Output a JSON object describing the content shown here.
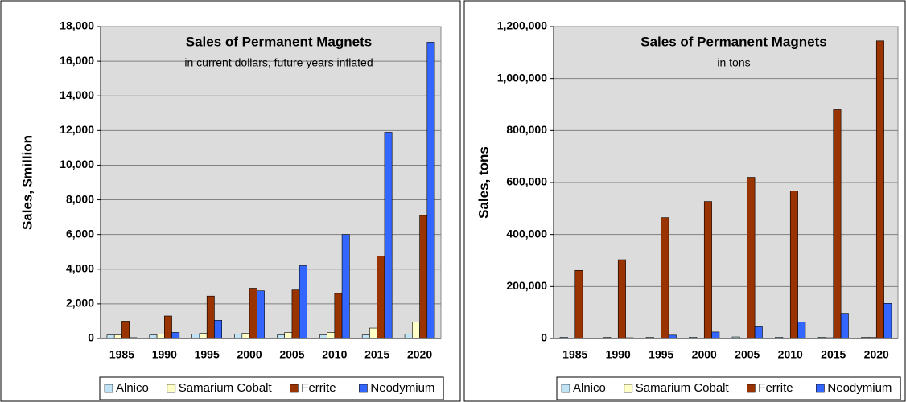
{
  "chart_data": [
    {
      "type": "bar",
      "title": "Sales of Permanent Magnets",
      "subtitle": "in current dollars, future years inflated",
      "y_label": "Sales, $million",
      "categories": [
        "1985",
        "1990",
        "1995",
        "2000",
        "2005",
        "2010",
        "2015",
        "2020"
      ],
      "series": [
        {
          "name": "Alnico",
          "color": "#bfe3f5",
          "values": [
            200,
            200,
            250,
            250,
            200,
            200,
            200,
            250
          ]
        },
        {
          "name": "Samarium Cobalt",
          "color": "#ffffc8",
          "values": [
            200,
            250,
            300,
            300,
            350,
            350,
            600,
            950
          ]
        },
        {
          "name": "Ferrite",
          "color": "#993300",
          "values": [
            1000,
            1300,
            2450,
            2900,
            2800,
            2600,
            4750,
            7100
          ]
        },
        {
          "name": "Neodymium",
          "color": "#3366ff",
          "values": [
            50,
            350,
            1050,
            2750,
            4200,
            6000,
            11900,
            17100
          ]
        }
      ],
      "ylim": [
        0,
        18000
      ],
      "yticks": [
        0,
        {
          "value": 2000,
          "label": "2,000"
        },
        {
          "value": 4000,
          "label": "4,000"
        },
        {
          "value": 6000,
          "label": "6,000"
        },
        {
          "value": 8000,
          "label": "8,000"
        },
        {
          "value": 10000,
          "label": "10,000"
        },
        {
          "value": 12000,
          "label": "12,000"
        },
        {
          "value": 14000,
          "label": "14,000"
        },
        {
          "value": 16000,
          "label": "16,000"
        },
        {
          "value": 18000,
          "label": "18,000"
        }
      ],
      "grid": true,
      "legend": "bottom"
    },
    {
      "type": "bar",
      "title": "Sales of Permanent Magnets",
      "subtitle": "in tons",
      "y_label": "Sales, tons",
      "categories": [
        "1985",
        "1990",
        "1995",
        "2000",
        "2005",
        "2010",
        "2015",
        "2020"
      ],
      "series": [
        {
          "name": "Alnico",
          "color": "#bfe3f5",
          "values": [
            5000,
            5000,
            5000,
            5000,
            6000,
            5000,
            5000,
            5000
          ]
        },
        {
          "name": "Samarium Cobalt",
          "color": "#ffffc8",
          "values": [
            1000,
            1000,
            1500,
            1500,
            2000,
            2000,
            3000,
            4000
          ]
        },
        {
          "name": "Ferrite",
          "color": "#993300",
          "values": [
            262000,
            303000,
            465000,
            527000,
            620000,
            567000,
            880000,
            1145000
          ]
        },
        {
          "name": "Neodymium",
          "color": "#3366ff",
          "values": [
            1000,
            3000,
            13000,
            25000,
            45000,
            63000,
            97000,
            135000
          ]
        }
      ],
      "ylim": [
        0,
        1200000
      ],
      "yticks": [
        0,
        {
          "value": 200000,
          "label": "200,000"
        },
        {
          "value": 400000,
          "label": "400,000"
        },
        {
          "value": 600000,
          "label": "600,000"
        },
        {
          "value": 800000,
          "label": "800,000"
        },
        {
          "value": 1000000,
          "label": "1,000,000"
        },
        {
          "value": 1200000,
          "label": "1,200,000"
        }
      ],
      "grid": true,
      "legend": "bottom"
    }
  ]
}
